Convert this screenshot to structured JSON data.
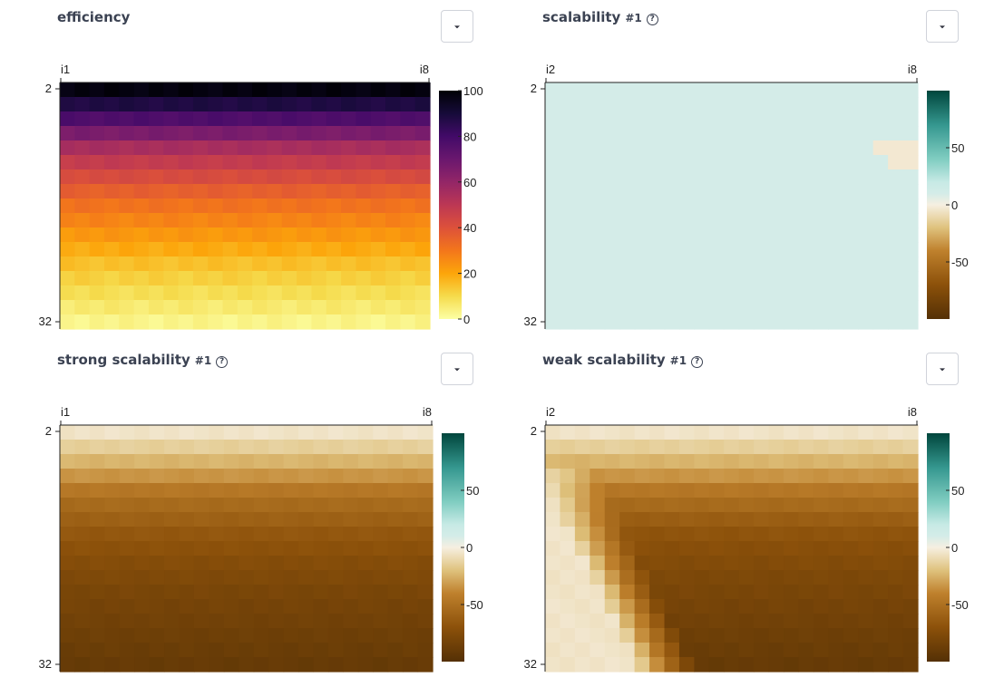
{
  "panels": [
    {
      "title": "efficiency",
      "run_tag": "",
      "has_help": false,
      "x_tick_labels": [
        "i1",
        "i8"
      ],
      "y_tick_labels": [
        "2",
        "32"
      ],
      "colorbar_ticks": [
        "100",
        "80",
        "60",
        "40",
        "20",
        "0"
      ],
      "colormap": "inferno-reversed"
    },
    {
      "title": "scalability",
      "run_tag": "#1",
      "has_help": true,
      "x_tick_labels": [
        "i2",
        "i8"
      ],
      "y_tick_labels": [
        "2",
        "32"
      ],
      "colorbar_ticks": [
        "50",
        "0",
        "-50"
      ],
      "colormap": "brown-white-teal"
    },
    {
      "title": "strong scalability",
      "run_tag": "#1",
      "has_help": true,
      "x_tick_labels": [
        "i1",
        "i8"
      ],
      "y_tick_labels": [
        "2",
        "32"
      ],
      "colorbar_ticks": [
        "50",
        "0",
        "-50"
      ],
      "colormap": "brown-white-teal"
    },
    {
      "title": "weak scalability",
      "run_tag": "#1",
      "has_help": true,
      "x_tick_labels": [
        "i2",
        "i8"
      ],
      "y_tick_labels": [
        "2",
        "32"
      ],
      "colorbar_ticks": [
        "50",
        "0",
        "-50"
      ],
      "colormap": "brown-white-teal"
    }
  ],
  "help_glyph": "?",
  "menu_icon": "chevron-down-icon",
  "chart_data": [
    {
      "type": "heatmap",
      "title": "efficiency",
      "x_range": [
        "i1",
        "i8"
      ],
      "y_range": [
        "2",
        "32"
      ],
      "rows": 17,
      "cols": 25,
      "color_range": [
        0,
        100
      ],
      "row_values": [
        98,
        88,
        77,
        66,
        55,
        48,
        42,
        36,
        31,
        27,
        23,
        19,
        15,
        12,
        9,
        6,
        3
      ]
    },
    {
      "type": "heatmap",
      "title": "scalability",
      "x_range": [
        "i2",
        "i8"
      ],
      "y_range": [
        "2",
        "32"
      ],
      "rows": 17,
      "cols": 25,
      "color_range": [
        -100,
        100
      ],
      "base_value": 10,
      "exceptions": [
        {
          "row": 4,
          "cols_from": 22,
          "value": -3
        },
        {
          "row": 5,
          "cols_from": 23,
          "value": -3
        }
      ]
    },
    {
      "type": "heatmap",
      "title": "strong scalability",
      "x_range": [
        "i1",
        "i8"
      ],
      "y_range": [
        "2",
        "32"
      ],
      "rows": 17,
      "cols": 25,
      "color_range": [
        -100,
        100
      ],
      "row_values": [
        -5,
        -14,
        -24,
        -34,
        -46,
        -54,
        -60,
        -66,
        -70,
        -74,
        -77,
        -80,
        -82,
        -84,
        -86,
        -88,
        -90
      ]
    },
    {
      "type": "heatmap",
      "title": "weak scalability",
      "x_range": [
        "i2",
        "i8"
      ],
      "y_range": [
        "2",
        "32"
      ],
      "rows": 17,
      "cols": 25,
      "color_range": [
        -100,
        100
      ],
      "row_values": [
        -5,
        -14,
        -24,
        -34,
        -46,
        -54,
        -62,
        -68,
        -72,
        -75,
        -78,
        -80,
        -82,
        -84,
        -86,
        -88,
        -90
      ],
      "front_slope": 0.5,
      "front_start_row": 3
    }
  ]
}
